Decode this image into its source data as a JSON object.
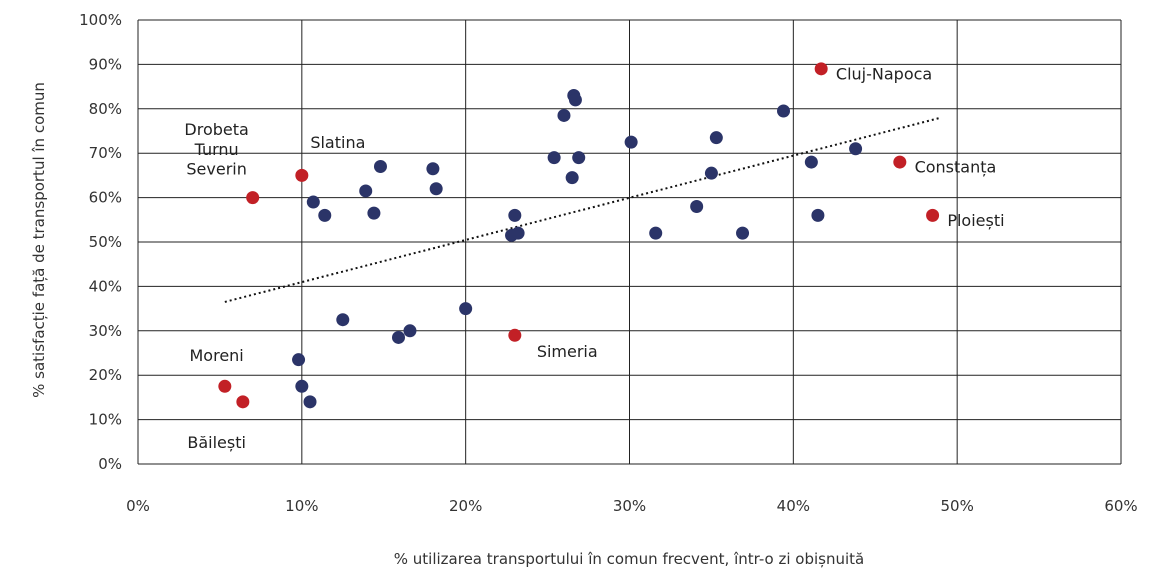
{
  "chart_data": {
    "type": "scatter",
    "xlabel": "% utilizarea transportului în comun frecvent, într-o zi obișnuită",
    "ylabel": "% satisfacție față de transportul în comun",
    "xlim": [
      0,
      60
    ],
    "ylim": [
      0,
      100
    ],
    "x_ticks": [
      {
        "value": 0,
        "label": "0%"
      },
      {
        "value": 10,
        "label": "10%"
      },
      {
        "value": 20,
        "label": "20%"
      },
      {
        "value": 30,
        "label": "30%"
      },
      {
        "value": 40,
        "label": "40%"
      },
      {
        "value": 50,
        "label": "50%"
      },
      {
        "value": 60,
        "label": "60%"
      }
    ],
    "y_ticks": [
      {
        "value": 0,
        "label": "0%"
      },
      {
        "value": 10,
        "label": "10%"
      },
      {
        "value": 20,
        "label": "20%"
      },
      {
        "value": 30,
        "label": "30%"
      },
      {
        "value": 40,
        "label": "40%"
      },
      {
        "value": 50,
        "label": "50%"
      },
      {
        "value": 60,
        "label": "60%"
      },
      {
        "value": 70,
        "label": "70%"
      },
      {
        "value": 80,
        "label": "80%"
      },
      {
        "value": 90,
        "label": "90%"
      },
      {
        "value": 100,
        "label": "100%"
      }
    ],
    "grid": true,
    "colors": {
      "default": "#2b3468",
      "highlight": "#c22026"
    },
    "points": [
      {
        "x": 9.8,
        "y": 23.5
      },
      {
        "x": 10.0,
        "y": 17.5
      },
      {
        "x": 10.5,
        "y": 14.0
      },
      {
        "x": 10.7,
        "y": 59.0
      },
      {
        "x": 11.4,
        "y": 56.0
      },
      {
        "x": 12.5,
        "y": 32.5
      },
      {
        "x": 13.9,
        "y": 61.5
      },
      {
        "x": 14.4,
        "y": 56.5
      },
      {
        "x": 14.8,
        "y": 67.0
      },
      {
        "x": 15.9,
        "y": 28.5
      },
      {
        "x": 16.6,
        "y": 30.0
      },
      {
        "x": 18.0,
        "y": 66.5
      },
      {
        "x": 18.2,
        "y": 62.0
      },
      {
        "x": 20.0,
        "y": 35.0
      },
      {
        "x": 22.8,
        "y": 51.5
      },
      {
        "x": 23.0,
        "y": 56.0
      },
      {
        "x": 23.2,
        "y": 52.0
      },
      {
        "x": 25.4,
        "y": 69.0
      },
      {
        "x": 26.0,
        "y": 78.5
      },
      {
        "x": 26.5,
        "y": 64.5
      },
      {
        "x": 26.6,
        "y": 83.0
      },
      {
        "x": 26.7,
        "y": 82.0
      },
      {
        "x": 26.9,
        "y": 69.0
      },
      {
        "x": 30.1,
        "y": 72.5
      },
      {
        "x": 31.6,
        "y": 52.0
      },
      {
        "x": 34.1,
        "y": 58.0
      },
      {
        "x": 35.0,
        "y": 65.5
      },
      {
        "x": 35.3,
        "y": 73.5
      },
      {
        "x": 36.9,
        "y": 52.0
      },
      {
        "x": 39.4,
        "y": 79.5
      },
      {
        "x": 41.1,
        "y": 68.0
      },
      {
        "x": 41.5,
        "y": 56.0
      },
      {
        "x": 43.8,
        "y": 71.0
      },
      {
        "x": 5.3,
        "y": 17.5,
        "highlight": true
      },
      {
        "x": 6.4,
        "y": 14.0,
        "highlight": true
      },
      {
        "x": 7.0,
        "y": 60.0,
        "highlight": true
      },
      {
        "x": 10.0,
        "y": 65.0,
        "highlight": true
      },
      {
        "x": 23.0,
        "y": 29.0,
        "highlight": true
      },
      {
        "x": 41.7,
        "y": 89.0,
        "highlight": true
      },
      {
        "x": 46.5,
        "y": 68.0,
        "highlight": true
      },
      {
        "x": 48.5,
        "y": 56.0,
        "highlight": true
      }
    ],
    "trendline": {
      "style": "dotted",
      "from": {
        "x": 5.3,
        "y": 36.5
      },
      "to": {
        "x": 49.0,
        "y": 78.0
      }
    },
    "annotations": [
      {
        "text": "Drobeta",
        "x": 4.8,
        "y": 75.5,
        "anchor": "middle"
      },
      {
        "text": "Turnu",
        "x": 4.8,
        "y": 71.0,
        "anchor": "middle"
      },
      {
        "text": "Severin",
        "x": 4.8,
        "y": 66.5,
        "anchor": "middle"
      },
      {
        "text": "Slatina",
        "x": 12.2,
        "y": 72.5,
        "anchor": "middle"
      },
      {
        "text": "Moreni",
        "x": 4.8,
        "y": 24.5,
        "anchor": "middle"
      },
      {
        "text": "Băilești",
        "x": 4.8,
        "y": 5.0,
        "anchor": "middle"
      },
      {
        "text": "Simeria",
        "x": 26.2,
        "y": 25.5,
        "anchor": "middle"
      },
      {
        "text": "Cluj-Napoca",
        "x": 42.6,
        "y": 88.0,
        "anchor": "start"
      },
      {
        "text": "Constanța",
        "x": 47.4,
        "y": 67.0,
        "anchor": "start"
      },
      {
        "text": "Ploiești",
        "x": 49.4,
        "y": 55.0,
        "anchor": "start"
      }
    ]
  }
}
